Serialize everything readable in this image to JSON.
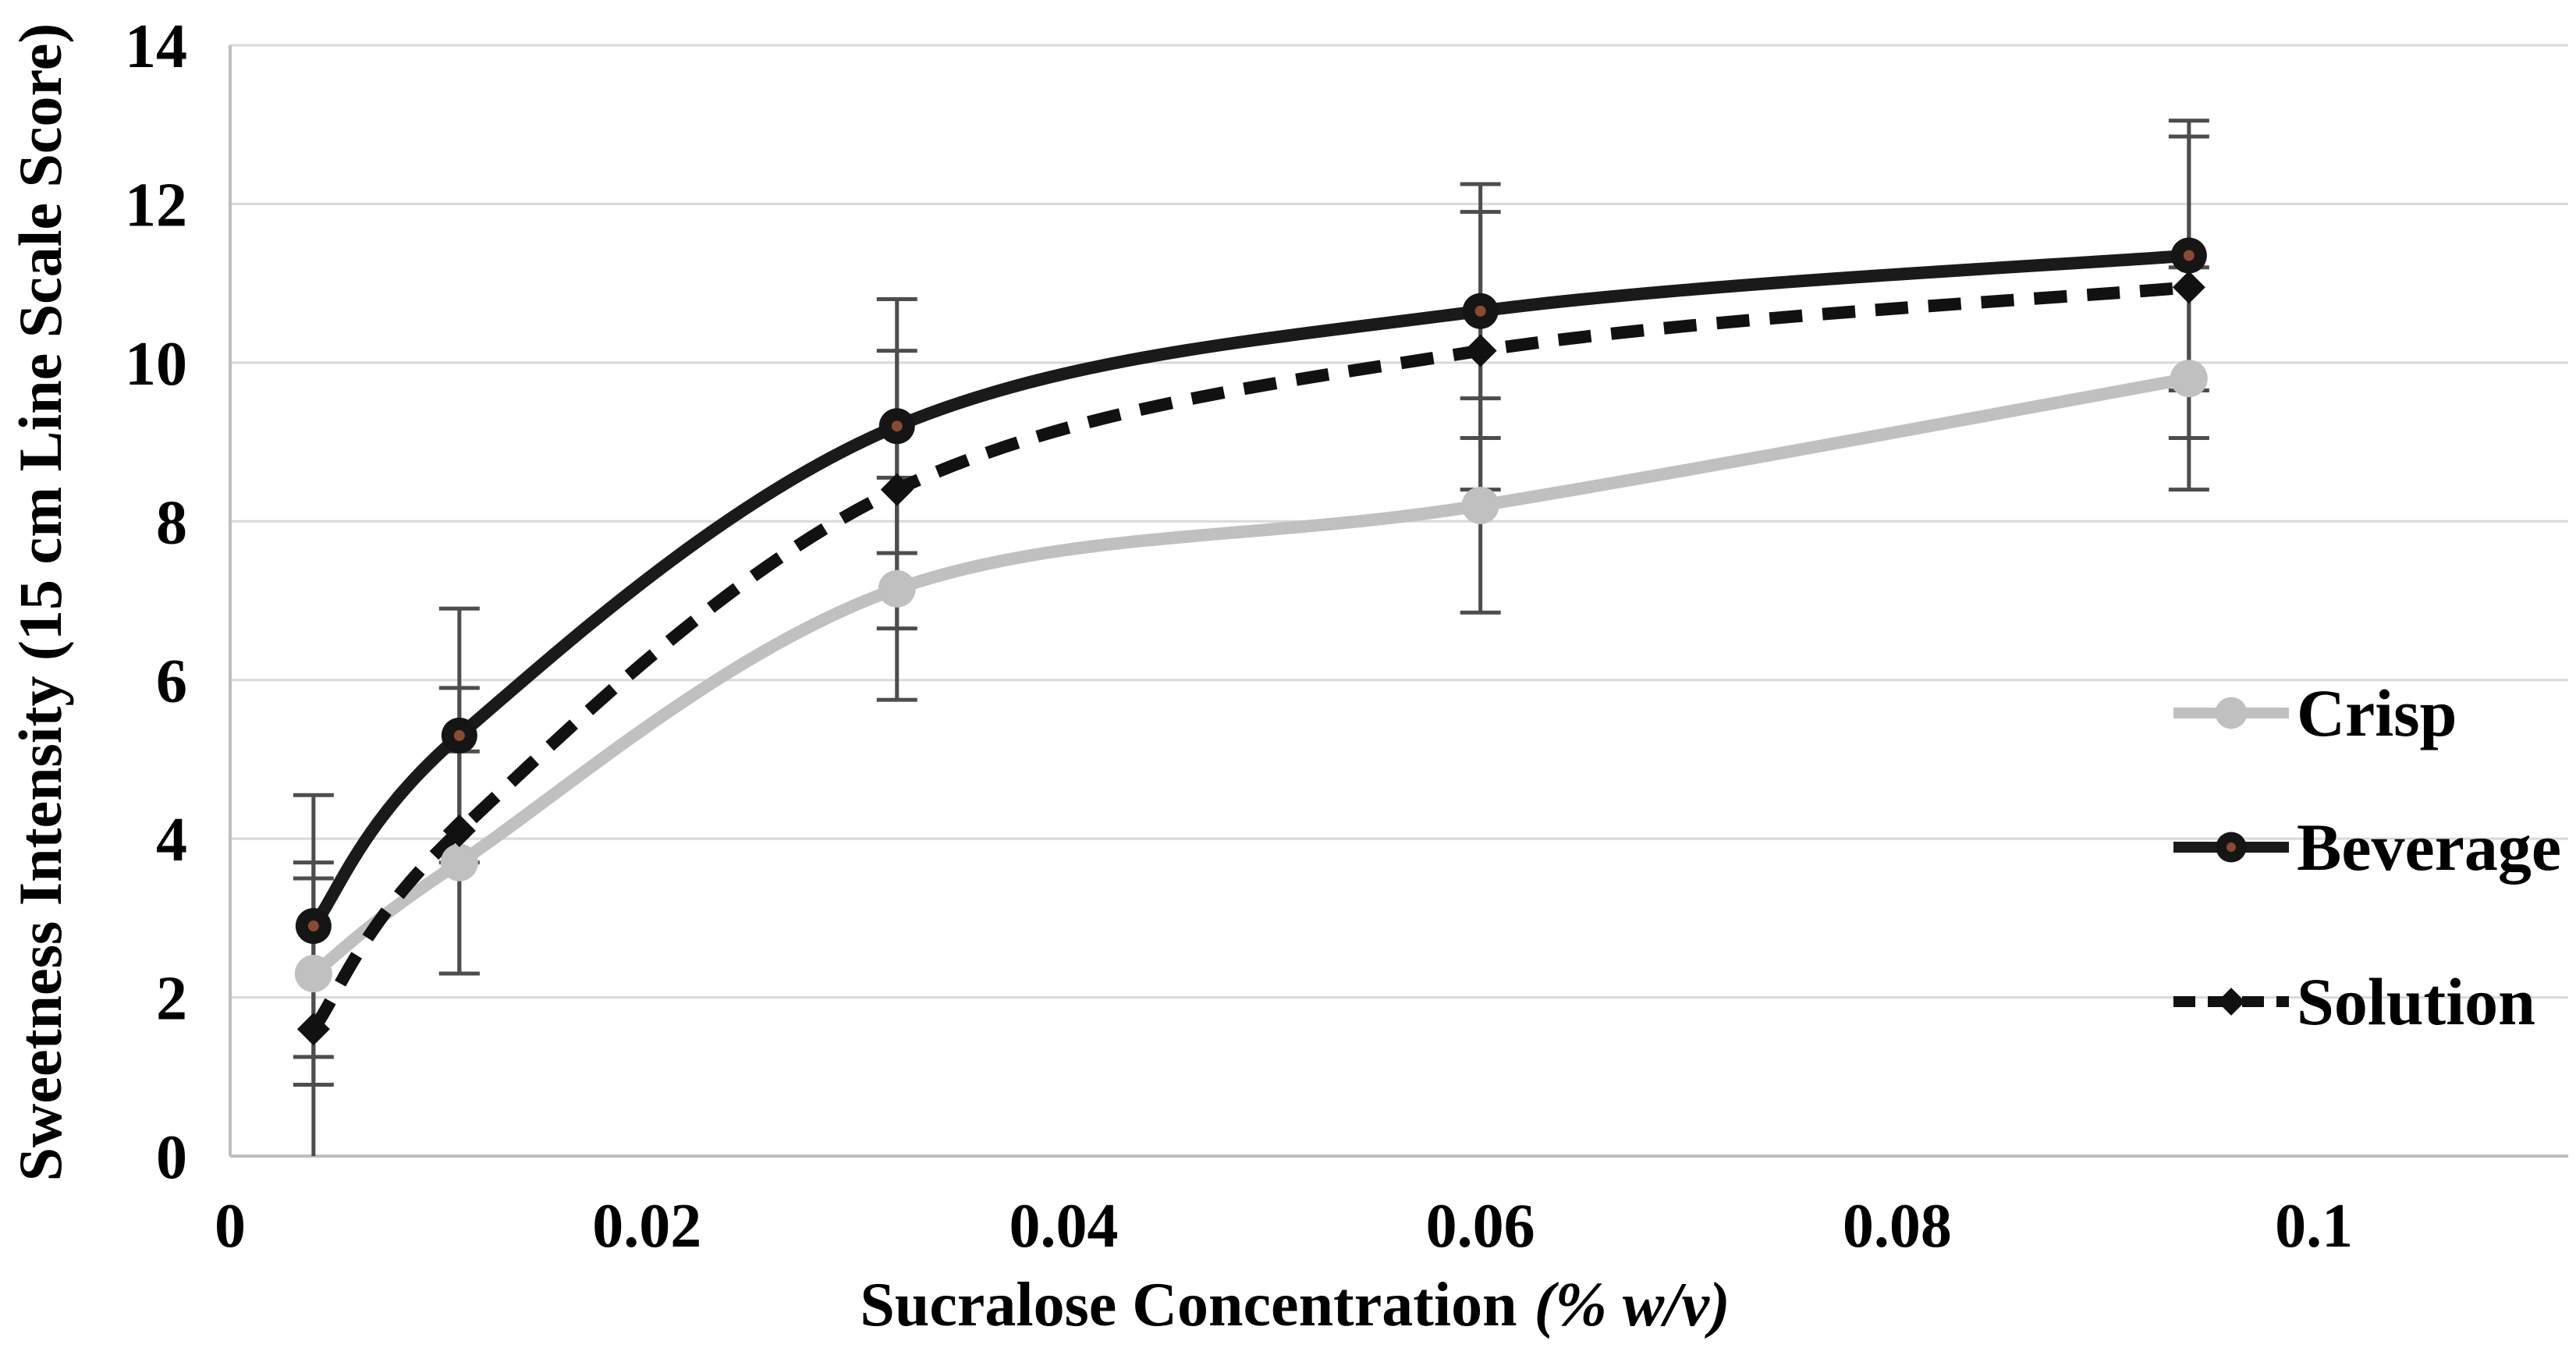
{
  "chart_data": {
    "type": "line",
    "xlabel_main": "Sucralose Concentration",
    "xlabel_unit": "(% w/v)",
    "ylabel": "Sweetness Intensity (15 cm Line Scale Score)",
    "x": [
      0.004,
      0.011,
      0.032,
      0.06,
      0.094
    ],
    "xlim": [
      0,
      0.1122
    ],
    "ylim": [
      0,
      14
    ],
    "xticks": [
      0,
      0.02,
      0.04,
      0.06,
      0.08,
      0.1
    ],
    "xtick_labels": [
      "0",
      "0.02",
      "0.04",
      "0.06",
      "0.08",
      "0.1"
    ],
    "yticks": [
      0,
      2,
      4,
      6,
      8,
      10,
      12,
      14
    ],
    "ytick_labels": [
      "0",
      "2",
      "4",
      "6",
      "8",
      "10",
      "12",
      "14"
    ],
    "grid": "horizontal",
    "legend_position": "right-inside",
    "grid_color": "#d9d9d9",
    "axis_color": "#bfbfbf",
    "error_bar_color": "#4d4d4d",
    "series": [
      {
        "name": "Crisp",
        "color": "#c0c0c0",
        "line_style": "solid",
        "marker": "circle",
        "marker_color": "#c0c0c0",
        "values": [
          2.3,
          3.7,
          7.15,
          8.2,
          9.8
        ],
        "error": [
          1.4,
          1.4,
          1.4,
          1.35,
          1.4
        ]
      },
      {
        "name": "Beverage",
        "color": "#1a1a1a",
        "line_style": "solid",
        "marker": "circle-dot",
        "marker_color": "#151515",
        "marker_center_color": "#8a4a32",
        "values": [
          2.9,
          5.3,
          9.2,
          10.65,
          11.35
        ],
        "error": [
          1.65,
          1.6,
          1.6,
          1.6,
          1.7
        ]
      },
      {
        "name": "Solution",
        "color": "#111111",
        "line_style": "dashed",
        "marker": "diamond",
        "marker_color": "#111111",
        "values": [
          1.6,
          4.1,
          8.4,
          10.15,
          10.95
        ],
        "error": [
          1.9,
          1.8,
          1.75,
          1.75,
          1.9
        ]
      }
    ]
  }
}
